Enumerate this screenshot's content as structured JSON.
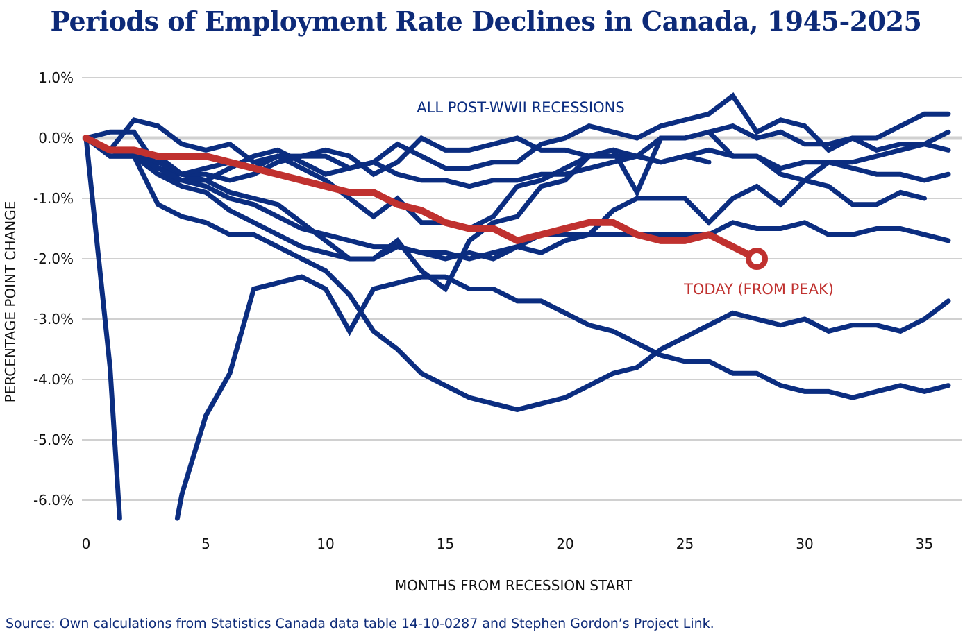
{
  "chart_data": {
    "type": "line",
    "title": "Periods of Employment Rate Declines in Canada, 1945-2025",
    "xlabel": "MONTHS FROM RECESSION START",
    "ylabel": "PERCENTAGE POINT CHANGE",
    "xlim": [
      0,
      36
    ],
    "ylim": [
      -6.3,
      1.0
    ],
    "x_ticks": [
      0,
      5,
      10,
      15,
      20,
      25,
      30,
      35
    ],
    "y_ticks": [
      1,
      0,
      -1,
      -2,
      -3,
      -4,
      -5,
      -6
    ],
    "y_tick_labels": [
      "1.0%",
      "0.0%",
      "-1.0%",
      "-2.0%",
      "-3.0%",
      "-4.0%",
      "-5.0%",
      "-6.0%"
    ],
    "grid": "horizontal",
    "colors": {
      "recessions": "#0b2d80",
      "today": "#c0312f",
      "grid": "#d0d0d0"
    },
    "annotations": {
      "recessions": "ALL POST-WWII RECESSIONS",
      "today": "TODAY (FROM PEAK)"
    },
    "recessions": [
      [
        0,
        0.1,
        0.1,
        -0.5,
        -0.6,
        -0.7,
        -0.5,
        -0.3,
        -0.2,
        -0.4,
        -0.6,
        -0.5,
        -0.4,
        -0.1,
        -0.3,
        -0.5,
        -0.5,
        -0.4,
        -0.4,
        -0.1,
        0.0,
        0.2,
        0.1,
        0.0,
        0.2,
        0.3,
        0.4,
        0.7,
        0.1,
        0.3,
        0.2,
        -0.2,
        0.0,
        0.0,
        0.2,
        0.4,
        0.4
      ],
      [
        0,
        -0.2,
        0.3,
        0.2,
        -0.1,
        -0.2,
        -0.1,
        -0.4,
        -0.3,
        -0.3,
        -0.2,
        -0.3,
        -0.6,
        -0.4,
        0.0,
        -0.2,
        -0.2,
        -0.1,
        0.0,
        -0.2,
        -0.2,
        -0.3,
        -0.3,
        -0.3,
        0.0,
        0.0,
        0.1,
        0.2,
        0.0,
        0.1,
        -0.1,
        -0.1,
        0.0,
        -0.2,
        -0.1,
        -0.1,
        -0.2
      ],
      [
        0,
        -0.3,
        -0.3,
        -0.6,
        -0.7,
        -0.7,
        -0.9,
        -1.0,
        -1.1,
        -1.4,
        -1.7,
        -2.0,
        -2.0,
        -1.7,
        -2.2,
        -2.5,
        -1.7,
        -1.4,
        -1.3,
        -0.8,
        -0.7,
        -0.3,
        -0.2,
        -0.9,
        0.0,
        0.0,
        0.1,
        -0.3,
        -0.3,
        -0.6,
        -0.7,
        -0.4,
        -0.4,
        -0.3,
        -0.2,
        -0.1,
        0.1
      ],
      [
        0,
        -0.3,
        -0.3,
        -0.4,
        -0.6,
        -0.6,
        -0.7,
        -0.6,
        -0.4,
        -0.3,
        -0.3,
        -0.5,
        -0.4,
        -0.6,
        -0.7,
        -0.7,
        -0.8,
        -0.7,
        -0.7,
        -0.6,
        -0.6,
        -0.5,
        -0.4,
        -0.3,
        -0.4,
        -0.3,
        -0.2,
        -0.3,
        -0.3,
        -0.5,
        -0.4,
        -0.4,
        -0.5,
        -0.6,
        -0.6,
        -0.7,
        -0.6
      ],
      [
        0,
        -0.3,
        -0.3,
        -0.6,
        -0.8,
        -0.9,
        -1.2,
        -1.4,
        -1.6,
        -1.8,
        -1.9,
        -2.0,
        -2.0,
        -1.8,
        -1.9,
        -1.9,
        -2.0,
        -1.9,
        -1.8,
        -1.9,
        -1.7,
        -1.6,
        -1.2,
        -1.0,
        -1.0,
        -1.0,
        -1.4,
        -1.0,
        -0.8,
        -1.1,
        -0.7,
        -0.8,
        -1.1,
        -1.1,
        -0.9,
        -1.0
      ],
      [
        0,
        -0.2,
        -0.3,
        -0.5,
        -0.7,
        -0.8,
        -1.0,
        -1.1,
        -1.3,
        -1.5,
        -1.6,
        -1.7,
        -1.8,
        -1.8,
        -1.9,
        -2.0,
        -1.9,
        -2.0,
        -1.8,
        -1.6,
        -1.6,
        -1.6,
        -1.6,
        -1.6,
        -1.6,
        -1.6,
        -1.6,
        -1.4,
        -1.5,
        -1.5,
        -1.4,
        -1.6,
        -1.6,
        -1.5,
        -1.5,
        -1.6,
        -1.7
      ],
      [
        0,
        -0.2,
        -0.3,
        -0.3,
        -0.6,
        -0.5,
        -0.4,
        -0.5,
        -0.3,
        -0.5,
        -0.7,
        -1.0,
        -1.3,
        -1.0,
        -1.4,
        -1.4,
        -1.5,
        -1.3,
        -0.8,
        -0.7,
        -0.5,
        -0.3,
        -0.2,
        -0.3,
        -0.4,
        -0.3,
        -0.4
      ],
      [
        0,
        -0.3,
        -0.3,
        -1.1,
        -1.3,
        -1.4,
        -1.6,
        -1.6,
        -1.8,
        -2.0,
        -2.2,
        -2.6,
        -3.2,
        -3.5,
        -3.9,
        -4.1,
        -4.3,
        -4.4,
        -4.5,
        -4.4,
        -4.3,
        -4.1,
        -3.9,
        -3.8,
        -3.5,
        -3.3,
        -3.1,
        -2.9,
        -3.0,
        -3.1,
        -3.0,
        -3.2,
        -3.1,
        -3.1,
        -3.2,
        -3.0,
        -2.7
      ],
      [
        0,
        -3.8,
        -10.0,
        -8.0,
        -5.9,
        -4.6,
        -3.9,
        -2.5,
        -2.4,
        -2.3,
        -2.5,
        -3.2,
        -2.5,
        -2.4,
        -2.3,
        -2.3,
        -2.5,
        -2.5,
        -2.7,
        -2.7,
        -2.9,
        -3.1,
        -3.2,
        -3.4,
        -3.6,
        -3.7,
        -3.7,
        -3.9,
        -3.9,
        -4.1,
        -4.2,
        -4.2,
        -4.3,
        -4.2,
        -4.1,
        -4.2,
        -4.1
      ]
    ],
    "today": [
      0,
      -0.2,
      -0.2,
      -0.3,
      -0.3,
      -0.3,
      -0.4,
      -0.5,
      -0.6,
      -0.7,
      -0.8,
      -0.9,
      -0.9,
      -1.1,
      -1.2,
      -1.4,
      -1.5,
      -1.5,
      -1.7,
      -1.6,
      -1.5,
      -1.4,
      -1.4,
      -1.6,
      -1.7,
      -1.7,
      -1.6,
      -1.8,
      -2.0
    ]
  },
  "source": "Source: Own calculations from Statistics Canada data table 14-10-0287 and Stephen Gordon’s Project Link."
}
